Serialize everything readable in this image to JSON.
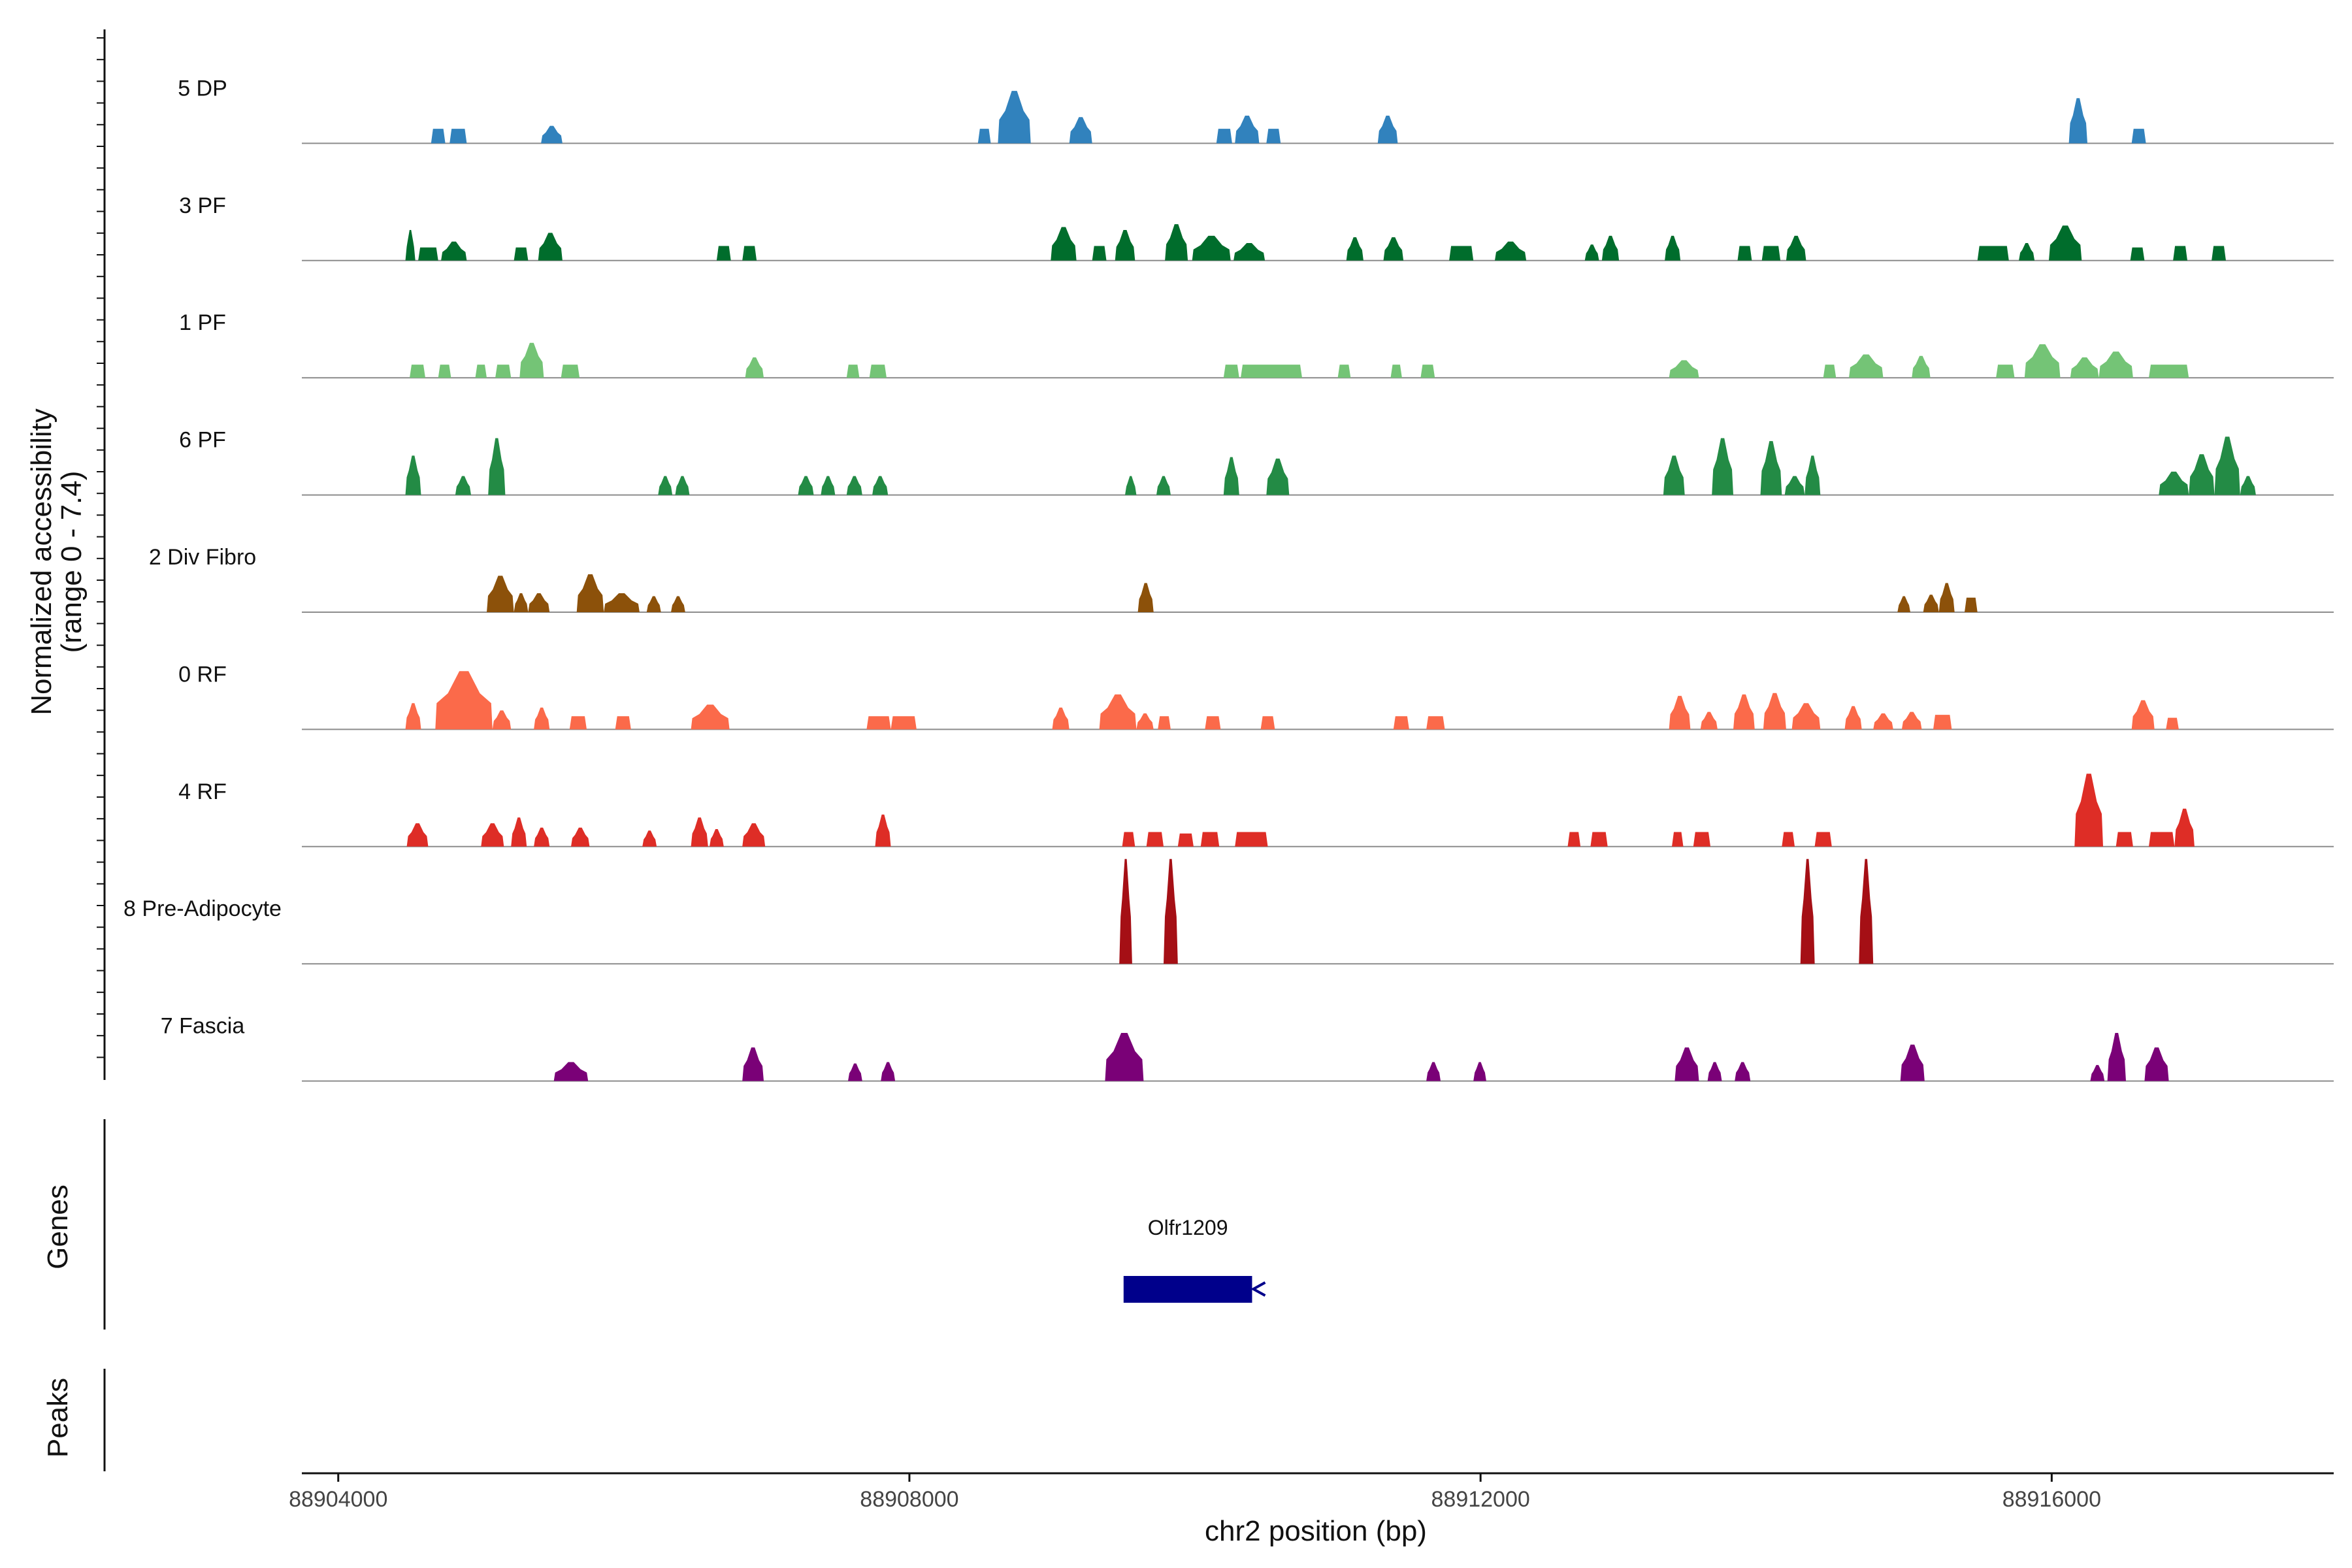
{
  "chart_data": {
    "type": "area",
    "title": "",
    "xlabel": "chr2 position (bp)",
    "ylabel_line1": "Normalized accessibility",
    "ylabel_line2": "(range 0 - 7.4)",
    "genes_label": "Genes",
    "peaks_label": "Peaks",
    "xlim": [
      88903800,
      88918000
    ],
    "ylim": [
      0,
      7.4
    ],
    "x_ticks": [
      88904000,
      88908000,
      88912000,
      88916000
    ],
    "x_tick_labels": [
      "88904000",
      "88908000",
      "88912000",
      "88916000"
    ],
    "tracks": [
      {
        "name": "5 DP",
        "color": "#3182bd",
        "regions": [
          [
            88904650,
            88904750,
            1
          ],
          [
            88904780,
            88904900,
            1
          ],
          [
            88905420,
            88905570,
            1.2
          ],
          [
            88908480,
            88908570,
            1
          ],
          [
            88908620,
            88908850,
            3.6
          ],
          [
            88909120,
            88909280,
            1.8
          ],
          [
            88910150,
            88910260,
            1
          ],
          [
            88910280,
            88910450,
            1.9
          ],
          [
            88910500,
            88910600,
            1
          ],
          [
            88911280,
            88911420,
            1.9
          ],
          [
            88916120,
            88916250,
            3.1
          ],
          [
            88916560,
            88916660,
            1
          ]
        ]
      },
      {
        "name": "3 PF",
        "color": "#006d2c",
        "regions": [
          [
            88904470,
            88904540,
            2.1
          ],
          [
            88904560,
            88904700,
            0.9
          ],
          [
            88904720,
            88904900,
            1.3
          ],
          [
            88905230,
            88905330,
            0.9
          ],
          [
            88905400,
            88905570,
            1.9
          ],
          [
            88906650,
            88906750,
            1
          ],
          [
            88906830,
            88906930,
            1
          ],
          [
            88908990,
            88909170,
            2.3
          ],
          [
            88909280,
            88909380,
            1
          ],
          [
            88909440,
            88909580,
            2.1
          ],
          [
            88909790,
            88909950,
            2.5
          ],
          [
            88909980,
            88910250,
            1.7
          ],
          [
            88910270,
            88910490,
            1.2
          ],
          [
            88911060,
            88911180,
            1.6
          ],
          [
            88911320,
            88911460,
            1.6
          ],
          [
            88911780,
            88911950,
            1
          ],
          [
            88912100,
            88912320,
            1.3
          ],
          [
            88912730,
            88912830,
            1.1
          ],
          [
            88912850,
            88912970,
            1.7
          ],
          [
            88913290,
            88913400,
            1.7
          ],
          [
            88913800,
            88913900,
            1
          ],
          [
            88913970,
            88914100,
            1
          ],
          [
            88914140,
            88914280,
            1.7
          ],
          [
            88915480,
            88915700,
            1
          ],
          [
            88915770,
            88915880,
            1.2
          ],
          [
            88915980,
            88916210,
            2.4
          ],
          [
            88916550,
            88916650,
            0.9
          ],
          [
            88916850,
            88916950,
            1
          ],
          [
            88917120,
            88917220,
            1
          ]
        ]
      },
      {
        "name": "1 PF",
        "color": "#74c476",
        "regions": [
          [
            88904500,
            88904610,
            0.9
          ],
          [
            88904700,
            88904790,
            0.9
          ],
          [
            88904960,
            88905040,
            0.9
          ],
          [
            88905100,
            88905210,
            0.9
          ],
          [
            88905270,
            88905440,
            2.4
          ],
          [
            88905560,
            88905690,
            0.9
          ],
          [
            88906850,
            88906980,
            1.4
          ],
          [
            88907560,
            88907650,
            0.9
          ],
          [
            88907720,
            88907840,
            0.9
          ],
          [
            88910200,
            88910310,
            0.9
          ],
          [
            88910320,
            88910750,
            0.9
          ],
          [
            88911000,
            88911090,
            0.9
          ],
          [
            88911370,
            88911450,
            0.9
          ],
          [
            88911580,
            88911680,
            0.9
          ],
          [
            88913320,
            88913530,
            1.2
          ],
          [
            88914400,
            88914490,
            0.9
          ],
          [
            88914580,
            88914820,
            1.6
          ],
          [
            88915020,
            88915150,
            1.5
          ],
          [
            88915610,
            88915740,
            0.9
          ],
          [
            88915810,
            88916060,
            2.3
          ],
          [
            88916130,
            88916330,
            1.4
          ],
          [
            88916330,
            88916570,
            1.8
          ],
          [
            88916680,
            88916960,
            0.9
          ]
        ]
      },
      {
        "name": "6 PF",
        "color": "#238b45",
        "regions": [
          [
            88904470,
            88904580,
            2.7
          ],
          [
            88904820,
            88904930,
            1.3
          ],
          [
            88905050,
            88905170,
            3.9
          ],
          [
            88906240,
            88906340,
            1.3
          ],
          [
            88906360,
            88906460,
            1.3
          ],
          [
            88907220,
            88907330,
            1.3
          ],
          [
            88907380,
            88907480,
            1.3
          ],
          [
            88907560,
            88907670,
            1.3
          ],
          [
            88907740,
            88907850,
            1.3
          ],
          [
            88909510,
            88909590,
            1.3
          ],
          [
            88909730,
            88909830,
            1.3
          ],
          [
            88910200,
            88910310,
            2.6
          ],
          [
            88910500,
            88910660,
            2.5
          ],
          [
            88913280,
            88913430,
            2.7
          ],
          [
            88913620,
            88913770,
            3.9
          ],
          [
            88913960,
            88914110,
            3.7
          ],
          [
            88914130,
            88914270,
            1.3
          ],
          [
            88914270,
            88914380,
            2.7
          ],
          [
            88916750,
            88916960,
            1.6
          ],
          [
            88916960,
            88917140,
            2.8
          ],
          [
            88917140,
            88917320,
            4
          ],
          [
            88917320,
            88917430,
            1.3
          ]
        ]
      },
      {
        "name": "2 Div Fibro",
        "color": "#8c510a",
        "regions": [
          [
            88905040,
            88905230,
            2.5
          ],
          [
            88905230,
            88905330,
            1.3
          ],
          [
            88905330,
            88905480,
            1.3
          ],
          [
            88905670,
            88905860,
            2.6
          ],
          [
            88905860,
            88906110,
            1.3
          ],
          [
            88906160,
            88906260,
            1.1
          ],
          [
            88906330,
            88906430,
            1.1
          ],
          [
            88909600,
            88909710,
            2
          ],
          [
            88914920,
            88915010,
            1.1
          ],
          [
            88915100,
            88915210,
            1.2
          ],
          [
            88915210,
            88915320,
            2
          ],
          [
            88915390,
            88915480,
            1
          ]
        ]
      },
      {
        "name": "0 RF",
        "color": "#fb6a4a",
        "regions": [
          [
            88904470,
            88904580,
            1.8
          ],
          [
            88904680,
            88905080,
            4
          ],
          [
            88905080,
            88905210,
            1.3
          ],
          [
            88905370,
            88905480,
            1.5
          ],
          [
            88905620,
            88905740,
            0.9
          ],
          [
            88905940,
            88906050,
            0.9
          ],
          [
            88906470,
            88906740,
            1.7
          ],
          [
            88907700,
            88907870,
            0.9
          ],
          [
            88907870,
            88908050,
            0.9
          ],
          [
            88909000,
            88909120,
            1.5
          ],
          [
            88909330,
            88909590,
            2.4
          ],
          [
            88909590,
            88909710,
            1.1
          ],
          [
            88909740,
            88909830,
            0.9
          ],
          [
            88910070,
            88910180,
            0.9
          ],
          [
            88910460,
            88910560,
            0.9
          ],
          [
            88911390,
            88911500,
            0.9
          ],
          [
            88911620,
            88911750,
            0.9
          ],
          [
            88913320,
            88913470,
            2.3
          ],
          [
            88913540,
            88913660,
            1.2
          ],
          [
            88913770,
            88913920,
            2.4
          ],
          [
            88913980,
            88914140,
            2.5
          ],
          [
            88914180,
            88914380,
            1.8
          ],
          [
            88914550,
            88914670,
            1.6
          ],
          [
            88914750,
            88914890,
            1.1
          ],
          [
            88914950,
            88915090,
            1.2
          ],
          [
            88915170,
            88915300,
            1
          ],
          [
            88916560,
            88916720,
            2
          ],
          [
            88916800,
            88916890,
            0.8
          ]
        ]
      },
      {
        "name": "4 RF",
        "color": "#de2d26",
        "regions": [
          [
            88904480,
            88904630,
            1.6
          ],
          [
            88905000,
            88905160,
            1.6
          ],
          [
            88905210,
            88905320,
            2
          ],
          [
            88905370,
            88905480,
            1.3
          ],
          [
            88905630,
            88905760,
            1.3
          ],
          [
            88906130,
            88906230,
            1.1
          ],
          [
            88906470,
            88906590,
            2
          ],
          [
            88906600,
            88906700,
            1.2
          ],
          [
            88906830,
            88906990,
            1.6
          ],
          [
            88907760,
            88907870,
            2.2
          ],
          [
            88909490,
            88909580,
            1
          ],
          [
            88909660,
            88909780,
            1
          ],
          [
            88909880,
            88909990,
            0.9
          ],
          [
            88910040,
            88910170,
            1
          ],
          [
            88910280,
            88910510,
            1
          ],
          [
            88912610,
            88912700,
            1
          ],
          [
            88912770,
            88912890,
            1
          ],
          [
            88913340,
            88913420,
            1
          ],
          [
            88913490,
            88913610,
            1
          ],
          [
            88914110,
            88914200,
            1
          ],
          [
            88914340,
            88914460,
            1
          ],
          [
            88916160,
            88916360,
            5
          ],
          [
            88916450,
            88916570,
            1
          ],
          [
            88916680,
            88916860,
            1
          ],
          [
            88916860,
            88917000,
            2.6
          ]
        ]
      },
      {
        "name": "8 Pre-Adipocyte",
        "color": "#a50f15",
        "regions": [
          [
            88909470,
            88909560,
            7.2
          ],
          [
            88909780,
            88909880,
            7.2
          ],
          [
            88914240,
            88914340,
            7.2
          ],
          [
            88914650,
            88914750,
            7.2
          ]
        ]
      },
      {
        "name": "7 Fascia",
        "color": "#7a0177",
        "regions": [
          [
            88905510,
            88905750,
            1.3
          ],
          [
            88906830,
            88906980,
            2.3
          ],
          [
            88907570,
            88907670,
            1.2
          ],
          [
            88907800,
            88907900,
            1.3
          ],
          [
            88909370,
            88909640,
            3.3
          ],
          [
            88911620,
            88911720,
            1.3
          ],
          [
            88911950,
            88912040,
            1.3
          ],
          [
            88913360,
            88913530,
            2.3
          ],
          [
            88913590,
            88913690,
            1.3
          ],
          [
            88913780,
            88913890,
            1.3
          ],
          [
            88914940,
            88915110,
            2.5
          ],
          [
            88916270,
            88916370,
            1.1
          ],
          [
            88916390,
            88916520,
            3.3
          ],
          [
            88916650,
            88916820,
            2.3
          ]
        ]
      }
    ],
    "genes": [
      {
        "name": "Olfr1209",
        "start": 88909500,
        "end": 88910400,
        "strand": "-",
        "color": "#00008b"
      }
    ],
    "peaks": []
  }
}
